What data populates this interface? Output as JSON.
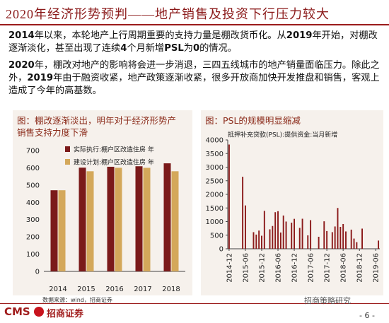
{
  "header": {
    "title": "2020年经济形势预判——地产销售及投资下行压力较大"
  },
  "paragraphs": [
    [
      "2014",
      "年以来，本轮地产上行周期重要的支持力量是棚改货币化。从",
      "2019",
      "年开始，对棚改逐渐淡化，甚至出现了连续",
      "4",
      "个月新增",
      "PSL",
      "为",
      "0",
      "的情况。"
    ],
    [
      "2020",
      "年，棚改对地产的影响将会进一步消退，三四五线城市的地产销量面临压力。除此之外，",
      "2019",
      "年由于融资收紧，地产政策逐渐收紧，很多开放商加快开发推盘和销售，客观上造成了今年的高基数。"
    ]
  ],
  "chart_data": [
    {
      "type": "bar",
      "title": "图：棚改逐渐淡出，明年对于经济形势产销售支持力度下滑",
      "categories": [
        "2014",
        "2015",
        "2016",
        "2017",
        "2018"
      ],
      "series": [
        {
          "name": "实际执行:棚户区改造住房 年",
          "color": "#7b1a1a",
          "values": [
            470,
            601,
            606,
            609,
            626
          ]
        },
        {
          "name": "建设计划:棚户区改造住房 年",
          "color": "#d4a85a",
          "values": [
            470,
            580,
            600,
            600,
            580
          ]
        }
      ],
      "ylim": [
        0,
        700
      ],
      "yticks": [
        0,
        100,
        200,
        300,
        400,
        500,
        600,
        700
      ],
      "legend": "upper left"
    },
    {
      "type": "bar",
      "title": "图：PSL的规模明显缩减",
      "categories": [
        "2014-12",
        null,
        null,
        null,
        null,
        null,
        "2015-06",
        null,
        null,
        null,
        null,
        null,
        "2015-12",
        null,
        null,
        null,
        null,
        null,
        "2016-06",
        null,
        null,
        null,
        null,
        null,
        "2016-12",
        null,
        null,
        null,
        null,
        null,
        "2017-06",
        null,
        null,
        null,
        null,
        null,
        "2017-12",
        null,
        null,
        null,
        null,
        null,
        "2018-06",
        null,
        null,
        null,
        null,
        null,
        "2018-12",
        null,
        null,
        null,
        null,
        null,
        "2019-06",
        null
      ],
      "series": [
        {
          "name": "抵押补充贷款(PSL):提供资金:当月新增",
          "color": "#8b1a1a",
          "values": [
            3831,
            0,
            0,
            0,
            0,
            2646,
            1593,
            0,
            0,
            611,
            522,
            669,
            480,
            1394,
            0,
            715,
            838,
            1345,
            1382,
            598,
            1223,
            1001,
            0,
            961,
            1100,
            0,
            768,
            1104,
            0,
            493,
            1053,
            0,
            0,
            442,
            0,
            1010,
            652,
            0,
            612,
            820,
            1500,
            805,
            910,
            637,
            0,
            704,
            375,
            244,
            0,
            741,
            0,
            0,
            0,
            0,
            0,
            302
          ]
        }
      ],
      "ylim": [
        0,
        4000
      ],
      "yticks": [
        0,
        500,
        1000,
        1500,
        2000,
        2500,
        3000,
        3500,
        4000
      ],
      "legend": "upper left"
    }
  ],
  "footer": {
    "source": "数据来源：wind，招商证券",
    "logo": "CMS",
    "company": "招商证券",
    "wechat": "招商策略研究",
    "page": "- 6 -"
  }
}
